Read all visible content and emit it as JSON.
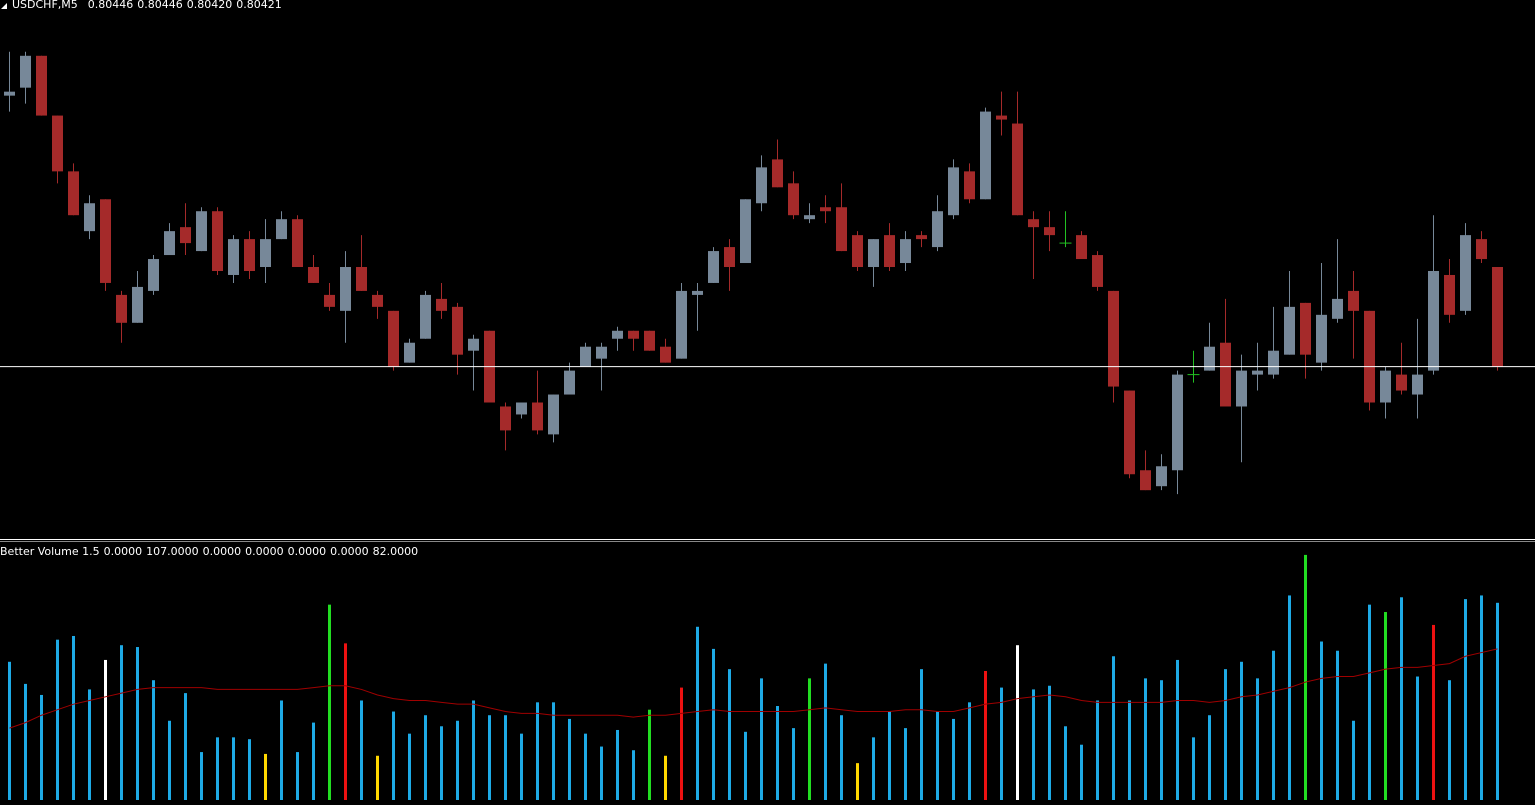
{
  "chart_data": [
    {
      "type": "candlestick",
      "title": "USDCHF,M5",
      "ohlc_labels": [
        "0.80446",
        "0.80446",
        "0.80420",
        "0.80421"
      ],
      "ylim": [
        0.80378,
        0.80513
      ],
      "bid": 0.80421,
      "up_color": "#778899",
      "down_color": "#a52a2a",
      "doji_color": "#22c022",
      "bid_color": "#ffffff",
      "ohlc": [
        [
          0.80489,
          0.805,
          0.80485,
          0.8049
        ],
        [
          0.80491,
          0.805,
          0.80487,
          0.80499
        ],
        [
          0.80499,
          0.80499,
          0.80484,
          0.80484
        ],
        [
          0.80484,
          0.80484,
          0.80467,
          0.8047
        ],
        [
          0.8047,
          0.80472,
          0.80459,
          0.80459
        ],
        [
          0.80455,
          0.80464,
          0.80453,
          0.80462
        ],
        [
          0.80463,
          0.80463,
          0.8044,
          0.80442
        ],
        [
          0.80439,
          0.8044,
          0.80427,
          0.80432
        ],
        [
          0.80432,
          0.80445,
          0.80432,
          0.80441
        ],
        [
          0.8044,
          0.80449,
          0.80439,
          0.80448
        ],
        [
          0.80449,
          0.80457,
          0.80449,
          0.80455
        ],
        [
          0.80456,
          0.80462,
          0.80449,
          0.80452
        ],
        [
          0.8045,
          0.80461,
          0.8045,
          0.8046
        ],
        [
          0.8046,
          0.80461,
          0.80444,
          0.80445
        ],
        [
          0.80444,
          0.80454,
          0.80442,
          0.80453
        ],
        [
          0.80453,
          0.80455,
          0.80443,
          0.80445
        ],
        [
          0.80446,
          0.80458,
          0.80442,
          0.80453
        ],
        [
          0.80453,
          0.8046,
          0.80453,
          0.80458
        ],
        [
          0.80458,
          0.80459,
          0.80446,
          0.80446
        ],
        [
          0.80446,
          0.80449,
          0.80442,
          0.80442
        ],
        [
          0.80439,
          0.80442,
          0.80435,
          0.80436
        ],
        [
          0.80435,
          0.8045,
          0.80427,
          0.80446
        ],
        [
          0.80446,
          0.80454,
          0.8044,
          0.8044
        ],
        [
          0.80439,
          0.8044,
          0.80433,
          0.80436
        ],
        [
          0.80435,
          0.80435,
          0.8042,
          0.80421
        ],
        [
          0.80422,
          0.80428,
          0.80422,
          0.80427
        ],
        [
          0.80428,
          0.8044,
          0.80428,
          0.80439
        ],
        [
          0.80438,
          0.80442,
          0.80433,
          0.80435
        ],
        [
          0.80436,
          0.80437,
          0.80419,
          0.80424
        ],
        [
          0.80425,
          0.80429,
          0.80415,
          0.80428
        ],
        [
          0.8043,
          0.8043,
          0.80412,
          0.80412
        ],
        [
          0.80411,
          0.80412,
          0.804,
          0.80405
        ],
        [
          0.80409,
          0.80412,
          0.80408,
          0.80412
        ],
        [
          0.80412,
          0.8042,
          0.80404,
          0.80405
        ],
        [
          0.80404,
          0.80414,
          0.80402,
          0.80414
        ],
        [
          0.80414,
          0.80422,
          0.80414,
          0.8042
        ],
        [
          0.80421,
          0.80427,
          0.80421,
          0.80426
        ],
        [
          0.80423,
          0.80427,
          0.80415,
          0.80426
        ],
        [
          0.80428,
          0.80431,
          0.80425,
          0.8043
        ],
        [
          0.8043,
          0.8043,
          0.80425,
          0.80428
        ],
        [
          0.8043,
          0.8043,
          0.80425,
          0.80425
        ],
        [
          0.80426,
          0.80428,
          0.80422,
          0.80422
        ],
        [
          0.80423,
          0.80442,
          0.80423,
          0.8044
        ],
        [
          0.80439,
          0.80442,
          0.8043,
          0.8044
        ],
        [
          0.80442,
          0.80451,
          0.80442,
          0.8045
        ],
        [
          0.80451,
          0.80453,
          0.8044,
          0.80446
        ],
        [
          0.80447,
          0.80463,
          0.80447,
          0.80463
        ],
        [
          0.80462,
          0.80474,
          0.8046,
          0.80471
        ],
        [
          0.80473,
          0.80478,
          0.80466,
          0.80466
        ],
        [
          0.80467,
          0.8047,
          0.80458,
          0.80459
        ],
        [
          0.80458,
          0.80462,
          0.80457,
          0.80459
        ],
        [
          0.80461,
          0.80464,
          0.80457,
          0.8046
        ],
        [
          0.80461,
          0.80467,
          0.8045,
          0.8045
        ],
        [
          0.80454,
          0.80455,
          0.80445,
          0.80446
        ],
        [
          0.80446,
          0.80453,
          0.80441,
          0.80453
        ],
        [
          0.80454,
          0.80457,
          0.80445,
          0.80446
        ],
        [
          0.80447,
          0.80455,
          0.80445,
          0.80453
        ],
        [
          0.80454,
          0.80455,
          0.80451,
          0.80453
        ],
        [
          0.80451,
          0.80464,
          0.8045,
          0.8046
        ],
        [
          0.80459,
          0.80473,
          0.80458,
          0.80471
        ],
        [
          0.8047,
          0.80472,
          0.80462,
          0.80463
        ],
        [
          0.80463,
          0.80486,
          0.80463,
          0.80485
        ],
        [
          0.80484,
          0.8049,
          0.80479,
          0.80483
        ],
        [
          0.80482,
          0.8049,
          0.80459,
          0.80459
        ],
        [
          0.80458,
          0.8046,
          0.80443,
          0.80456
        ],
        [
          0.80456,
          0.8046,
          0.8045,
          0.80454
        ],
        [
          0.80452,
          0.8046,
          0.80451,
          0.80452
        ],
        [
          0.80454,
          0.80455,
          0.80448,
          0.80448
        ],
        [
          0.80449,
          0.8045,
          0.8044,
          0.80441
        ],
        [
          0.8044,
          0.8044,
          0.80412,
          0.80416
        ],
        [
          0.80415,
          0.80415,
          0.80393,
          0.80394
        ],
        [
          0.80395,
          0.804,
          0.8039,
          0.8039
        ],
        [
          0.80391,
          0.80399,
          0.8039,
          0.80396
        ],
        [
          0.80395,
          0.8042,
          0.80389,
          0.80419
        ],
        [
          0.80419,
          0.80425,
          0.80417,
          0.80419
        ],
        [
          0.8042,
          0.80432,
          0.8042,
          0.80426
        ],
        [
          0.80427,
          0.80438,
          0.80411,
          0.80411
        ],
        [
          0.80411,
          0.80424,
          0.80397,
          0.8042
        ],
        [
          0.80419,
          0.80427,
          0.80415,
          0.8042
        ],
        [
          0.80419,
          0.80436,
          0.80418,
          0.80425
        ],
        [
          0.80424,
          0.80445,
          0.80424,
          0.80436
        ],
        [
          0.80437,
          0.80437,
          0.80418,
          0.80424
        ],
        [
          0.80422,
          0.80447,
          0.8042,
          0.80434
        ],
        [
          0.80433,
          0.80453,
          0.80432,
          0.80438
        ],
        [
          0.8044,
          0.80445,
          0.80423,
          0.80435
        ],
        [
          0.80435,
          0.80435,
          0.8041,
          0.80412
        ],
        [
          0.80412,
          0.80421,
          0.80408,
          0.8042
        ],
        [
          0.80419,
          0.80427,
          0.80414,
          0.80415
        ],
        [
          0.80414,
          0.80433,
          0.80408,
          0.80419
        ],
        [
          0.8042,
          0.80459,
          0.80419,
          0.80445
        ],
        [
          0.80444,
          0.80448,
          0.80432,
          0.80434
        ],
        [
          0.80435,
          0.80457,
          0.80434,
          0.80454
        ],
        [
          0.80453,
          0.80455,
          0.80447,
          0.80448
        ],
        [
          0.80446,
          0.80446,
          0.8042,
          0.80421
        ]
      ]
    },
    {
      "type": "volume",
      "title": "Better Volume 1.5",
      "indicator_labels": [
        "0.0000",
        "107.0000",
        "0.0000",
        "0.0000",
        "0.0000",
        "0.0000",
        "82.0000"
      ],
      "ylim": [
        0,
        140
      ],
      "ma_color": "#a00000",
      "values": [
        75,
        63,
        57,
        87,
        89,
        60,
        76,
        84,
        83,
        65,
        43,
        58,
        26,
        34,
        34,
        33,
        25,
        54,
        26,
        42,
        106,
        85,
        54,
        24,
        48,
        36,
        46,
        40,
        43,
        54,
        46,
        46,
        36,
        53,
        53,
        44,
        36,
        29,
        38,
        27,
        49,
        24,
        61,
        94,
        82,
        71,
        37,
        66,
        51,
        39,
        66,
        74,
        46,
        20,
        34,
        48,
        39,
        71,
        48,
        44,
        53,
        70,
        61,
        84,
        60,
        62,
        40,
        30,
        54,
        78,
        54,
        66,
        65,
        76,
        34,
        46,
        71,
        75,
        66,
        81,
        111,
        133,
        86,
        81,
        43,
        106,
        102,
        110,
        67,
        95,
        65,
        109,
        111,
        107
      ],
      "colors": [
        "#1eaae6",
        "#1eaae6",
        "#1eaae6",
        "#1eaae6",
        "#1eaae6",
        "#1eaae6",
        "#ffffff",
        "#1eaae6",
        "#1eaae6",
        "#1eaae6",
        "#1eaae6",
        "#1eaae6",
        "#1eaae6",
        "#1eaae6",
        "#1eaae6",
        "#1eaae6",
        "#ffd700",
        "#1eaae6",
        "#1eaae6",
        "#1eaae6",
        "#22dd22",
        "#ee1111",
        "#1eaae6",
        "#ffd700",
        "#1eaae6",
        "#1eaae6",
        "#1eaae6",
        "#1eaae6",
        "#1eaae6",
        "#1eaae6",
        "#1eaae6",
        "#1eaae6",
        "#1eaae6",
        "#1eaae6",
        "#1eaae6",
        "#1eaae6",
        "#1eaae6",
        "#1eaae6",
        "#1eaae6",
        "#1eaae6",
        "#22dd22",
        "#ffd700",
        "#ee1111",
        "#1eaae6",
        "#1eaae6",
        "#1eaae6",
        "#1eaae6",
        "#1eaae6",
        "#1eaae6",
        "#1eaae6",
        "#22dd22",
        "#1eaae6",
        "#1eaae6",
        "#ffd700",
        "#1eaae6",
        "#1eaae6",
        "#1eaae6",
        "#1eaae6",
        "#1eaae6",
        "#1eaae6",
        "#1eaae6",
        "#ee1111",
        "#1eaae6",
        "#ffffff",
        "#1eaae6",
        "#1eaae6",
        "#1eaae6",
        "#1eaae6",
        "#1eaae6",
        "#1eaae6",
        "#1eaae6",
        "#1eaae6",
        "#1eaae6",
        "#1eaae6",
        "#1eaae6",
        "#1eaae6",
        "#1eaae6",
        "#1eaae6",
        "#1eaae6",
        "#1eaae6",
        "#1eaae6",
        "#22dd22",
        "#1eaae6",
        "#1eaae6",
        "#1eaae6",
        "#1eaae6",
        "#22dd22",
        "#1eaae6",
        "#1eaae6",
        "#ee1111",
        "#1eaae6",
        "#1eaae6",
        "#1eaae6",
        "#1eaae6"
      ],
      "ma": [
        39,
        42,
        46,
        49,
        52,
        54,
        56,
        58,
        60,
        61,
        61,
        61,
        61,
        60,
        60,
        60,
        60,
        60,
        60,
        61,
        62,
        62,
        60,
        57,
        55,
        54,
        54,
        53,
        52,
        52,
        50,
        48,
        47,
        47,
        46,
        46,
        46,
        46,
        46,
        45,
        46,
        46,
        47,
        48,
        49,
        48,
        48,
        48,
        48,
        48,
        49,
        50,
        49,
        48,
        48,
        48,
        49,
        49,
        48,
        48,
        50,
        52,
        53,
        55,
        56,
        57,
        56,
        54,
        53,
        53,
        53,
        53,
        53,
        54,
        54,
        53,
        54,
        56,
        57,
        59,
        61,
        64,
        66,
        67,
        67,
        69,
        71,
        72,
        72,
        73,
        74,
        78,
        80,
        82
      ]
    }
  ]
}
